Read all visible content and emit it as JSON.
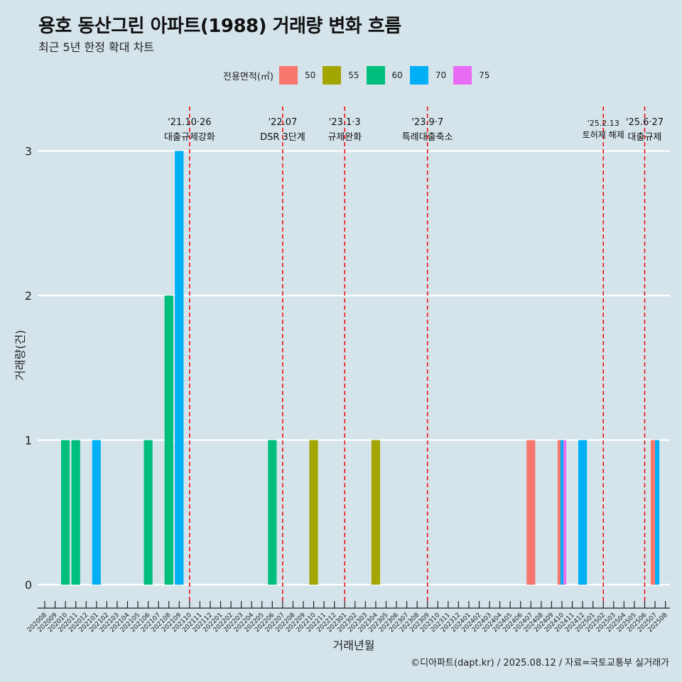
{
  "title": "용호 동산그린 아파트(1988) 거래량 변화 흐름",
  "subtitle": "최근 5년 한정 확대 차트",
  "caption": "©디아파트(dapt.kr) / 2025.08.12 / 자료=국토교통부 실거래가",
  "legend": {
    "title": "전용면적(㎡)",
    "items": [
      {
        "label": "50",
        "color": "#f8766d"
      },
      {
        "label": "55",
        "color": "#a3a500"
      },
      {
        "label": "60",
        "color": "#00bf7d"
      },
      {
        "label": "70",
        "color": "#00b0f6"
      },
      {
        "label": "75",
        "color": "#e76bf3"
      }
    ]
  },
  "chart_data": {
    "type": "bar",
    "stacking": "dodge",
    "xlabel": "거래년월",
    "ylabel": "거래량(건)",
    "ylim": [
      0,
      3
    ],
    "yticks": [
      0,
      1,
      2,
      3
    ],
    "grid": "horizontal",
    "legend_position": "top",
    "categories": [
      "202008",
      "202009",
      "202010",
      "202011",
      "202012",
      "202101",
      "202102",
      "202103",
      "202104",
      "202105",
      "202106",
      "202107",
      "202108",
      "202109",
      "202110",
      "202111",
      "202112",
      "202201",
      "202202",
      "202203",
      "202204",
      "202205",
      "202206",
      "202207",
      "202208",
      "202209",
      "202210",
      "202211",
      "202212",
      "202301",
      "202302",
      "202303",
      "202304",
      "202305",
      "202306",
      "202307",
      "202308",
      "202309",
      "202310",
      "202311",
      "202312",
      "202401",
      "202402",
      "202403",
      "202404",
      "202405",
      "202406",
      "202407",
      "202408",
      "202409",
      "202410",
      "202411",
      "202412",
      "202501",
      "202502",
      "202503",
      "202504",
      "202505",
      "202506",
      "202507",
      "202508"
    ],
    "bars": [
      {
        "month": "202010",
        "area": "60",
        "value": 1
      },
      {
        "month": "202011",
        "area": "60",
        "value": 1
      },
      {
        "month": "202101",
        "area": "70",
        "value": 1
      },
      {
        "month": "202106",
        "area": "60",
        "value": 1
      },
      {
        "month": "202108",
        "area": "60",
        "value": 2
      },
      {
        "month": "202109",
        "area": "70",
        "value": 3
      },
      {
        "month": "202206",
        "area": "60",
        "value": 1
      },
      {
        "month": "202210",
        "area": "55",
        "value": 1
      },
      {
        "month": "202304",
        "area": "55",
        "value": 1
      },
      {
        "month": "202407",
        "area": "50",
        "value": 1
      },
      {
        "month": "202410",
        "area": "50",
        "value": 1
      },
      {
        "month": "202410",
        "area": "70",
        "value": 1
      },
      {
        "month": "202410",
        "area": "75",
        "value": 1
      },
      {
        "month": "202412",
        "area": "70",
        "value": 1
      },
      {
        "month": "202507",
        "area": "50",
        "value": 1
      },
      {
        "month": "202507",
        "area": "70",
        "value": 1
      }
    ],
    "annotations": [
      {
        "month": "202110",
        "line1": "'21.10·26",
        "line2": "대출규제강화"
      },
      {
        "month": "202207",
        "line1": "'22.07",
        "line2": "DSR 3단계"
      },
      {
        "month": "202301",
        "line1": "'23.1·3",
        "line2": "규제완화"
      },
      {
        "month": "202309",
        "line1": "'23.9·7",
        "line2": "특례대출축소"
      },
      {
        "month": "202502",
        "line1": "'25.2.13",
        "line2": "토허제 해제"
      },
      {
        "month": "202506",
        "line1": "'25.6·27",
        "line2": "대출규제"
      }
    ]
  }
}
